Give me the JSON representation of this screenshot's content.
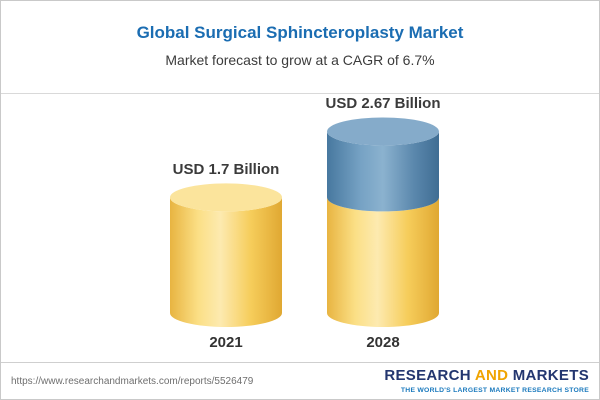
{
  "header": {
    "title_color": "#1b6db2"
  },
  "chart_data": {
    "type": "bar",
    "subtype": "cylinder",
    "title": "Global Surgical Sphincteroplasty Market",
    "subtitle": "Market forecast to grow at a CAGR of 6.7%",
    "cagr": "6.7%",
    "unit": "USD Billion",
    "categories": [
      "2021",
      "2028"
    ],
    "values": [
      1.7,
      2.67
    ],
    "value_labels": [
      "USD 1.7 Billion",
      "USD 2.67 Billion"
    ],
    "ylim": [
      0,
      3
    ],
    "grid": false,
    "legend": "none",
    "colors": {
      "base_segment": "#f6cf5d",
      "base_segment_top": "#fbe49c",
      "growth_segment": "#55809f",
      "growth_segment_top": "#85abca"
    },
    "notes": "2028 cylinder shows the 2021 base level in gold with the forecast growth portion stacked on top in blue"
  },
  "footer": {
    "url": "https://www.researchandmarkets.com/reports/5526479",
    "logo": {
      "part1": "RESEARCH",
      "part2": "AND",
      "part3": "MARKETS",
      "tagline": "THE WORLD'S LARGEST MARKET RESEARCH STORE"
    }
  }
}
